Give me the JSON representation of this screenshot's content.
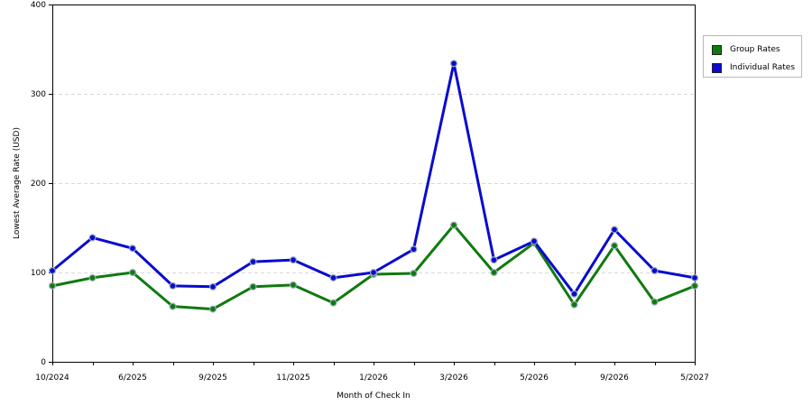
{
  "chart_data": {
    "type": "line",
    "xlabel": "Month of Check In",
    "ylabel": "Lowest Average Rate (USD)",
    "ylim": [
      0,
      400
    ],
    "yticks": [
      0,
      100,
      200,
      300,
      400
    ],
    "x_tick_labels": [
      "10/2024",
      "6/2025",
      "9/2025",
      "11/2025",
      "1/2026",
      "3/2026",
      "5/2026",
      "9/2026",
      "5/2027"
    ],
    "x_tick_indices": [
      0,
      2,
      4,
      6,
      8,
      10,
      12,
      14,
      16
    ],
    "grid": "horizontal-dashed",
    "legend_position": "right",
    "series": [
      {
        "name": "Group Rates",
        "color": "#0f7a0f",
        "values": [
          85,
          94,
          100,
          62,
          59,
          84,
          86,
          66,
          98,
          99,
          153,
          100,
          133,
          64,
          130,
          67,
          85
        ]
      },
      {
        "name": "Individual Rates",
        "color": "#0a0ad0",
        "values": [
          102,
          139,
          127,
          85,
          84,
          112,
          114,
          94,
          100,
          126,
          334,
          114,
          135,
          76,
          148,
          102,
          94
        ]
      }
    ]
  }
}
